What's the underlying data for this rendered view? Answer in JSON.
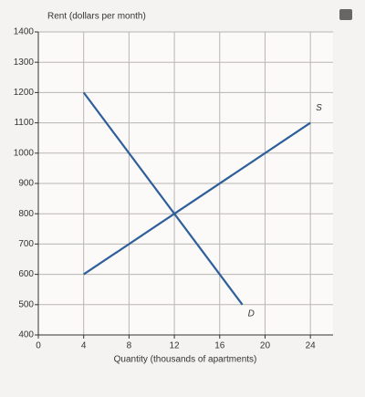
{
  "chart_data": {
    "type": "line",
    "y_label": "Rent (dollars per month)",
    "x_label": "Quantity (thousands of apartments)",
    "series": [
      {
        "name": "D",
        "color": "#2f5f9a",
        "x": [
          4,
          18
        ],
        "values": [
          1200,
          500
        ]
      },
      {
        "name": "S",
        "color": "#2f5f9a",
        "x": [
          4,
          24
        ],
        "values": [
          600,
          1100
        ]
      }
    ],
    "xlim": [
      0,
      26
    ],
    "xticks": [
      0,
      4,
      8,
      12,
      16,
      20,
      24
    ],
    "ylim": [
      400,
      1400
    ],
    "yticks": [
      400,
      500,
      600,
      700,
      800,
      900,
      1000,
      1100,
      1200,
      1300,
      1400
    ],
    "grid": true
  }
}
